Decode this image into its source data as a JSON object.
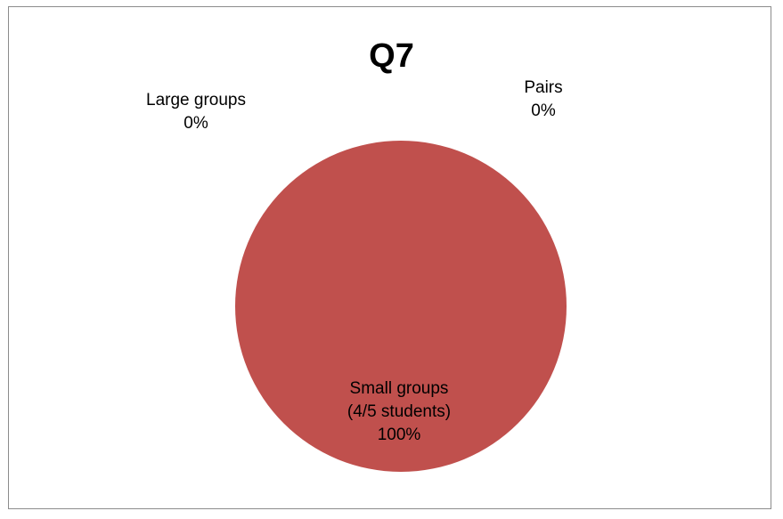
{
  "chart_data": {
    "type": "pie",
    "title": "Q7",
    "slices": [
      {
        "name": "Small groups (4/5 students)",
        "name_lines": [
          "Small groups",
          "(4/5 students)"
        ],
        "value": 100,
        "percent_label": "100%",
        "color": "#C0504D"
      },
      {
        "name": "Large groups",
        "name_lines": [
          "Large groups"
        ],
        "value": 0,
        "percent_label": "0%",
        "color": "#9BBB59"
      },
      {
        "name": "Pairs",
        "name_lines": [
          "Pairs"
        ],
        "value": 0,
        "percent_label": "0%",
        "color": "#4F81BD"
      }
    ],
    "legend": "none"
  }
}
